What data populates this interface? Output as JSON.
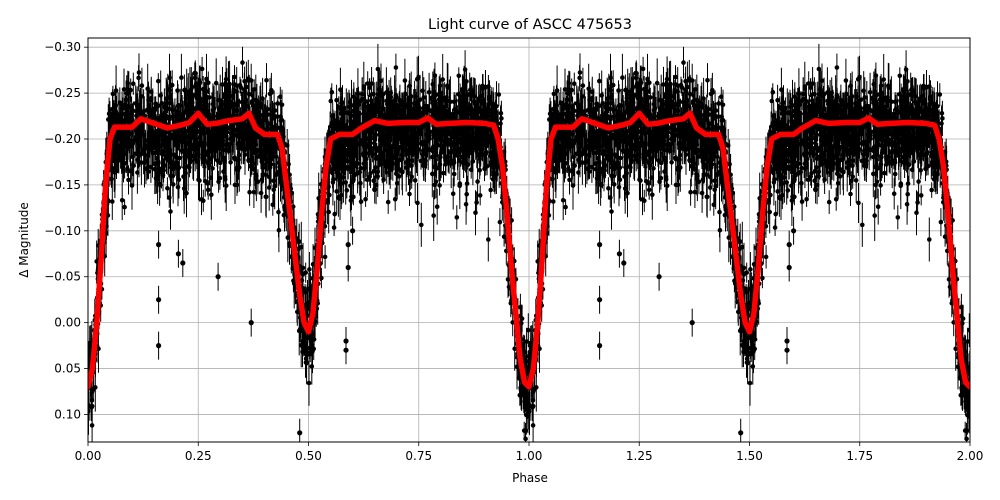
{
  "chart_data": {
    "type": "scatter",
    "title": "Light curve of ASCC 475653",
    "xlabel": "Phase",
    "ylabel": "Δ Magnitude",
    "xlim": [
      0.0,
      2.0
    ],
    "ylim": [
      0.13,
      -0.31
    ],
    "y_inverted": true,
    "grid": true,
    "legend": null,
    "xticks": [
      0.0,
      0.25,
      0.5,
      0.75,
      1.0,
      1.25,
      1.5,
      1.75,
      2.0
    ],
    "xtick_labels": [
      "0.00",
      "0.25",
      "0.50",
      "0.75",
      "1.00",
      "1.25",
      "1.50",
      "1.75",
      "2.00"
    ],
    "yticks": [
      -0.3,
      -0.25,
      -0.2,
      -0.15,
      -0.1,
      -0.05,
      0.0,
      0.05,
      0.1
    ],
    "ytick_labels": [
      "−0.30",
      "−0.25",
      "−0.20",
      "−0.15",
      "−0.10",
      "−0.05",
      "0.00",
      "0.05",
      "0.10"
    ],
    "series": [
      {
        "name": "observations",
        "kind": "errorbar-scatter",
        "color": "#000000",
        "description": "Dense black points with vertical error bars, phase-folded and repeated over two cycles; scatter roughly ±0.05 around the model with outliers down to about -0.02 to 0.05",
        "band_upper": [
          -0.28,
          -0.29,
          -0.29,
          -0.28,
          -0.28,
          -0.25,
          -0.15,
          -0.05,
          -0.05,
          -0.15,
          -0.28,
          -0.3,
          -0.28,
          -0.28,
          -0.28,
          -0.27,
          -0.22,
          -0.05,
          0.13
        ],
        "band_lower": [
          0.13,
          0.05,
          -0.15,
          -0.12,
          -0.12,
          -0.13,
          -0.05,
          0.06,
          0.06,
          -0.08,
          -0.13,
          -0.12,
          -0.13,
          -0.13,
          -0.12,
          -0.12,
          -0.1,
          0.13,
          0.13
        ],
        "band_phase": [
          0.0,
          0.03,
          0.06,
          0.12,
          0.25,
          0.4,
          0.45,
          0.48,
          0.51,
          0.54,
          0.58,
          0.65,
          0.75,
          0.85,
          0.9,
          0.93,
          0.95,
          0.98,
          1.0
        ],
        "outliers": [
          {
            "phase": 0.16,
            "mag": -0.085
          },
          {
            "phase": 0.16,
            "mag": -0.025
          },
          {
            "phase": 0.16,
            "mag": 0.025
          },
          {
            "phase": 0.205,
            "mag": -0.075
          },
          {
            "phase": 0.215,
            "mag": -0.065
          },
          {
            "phase": 0.295,
            "mag": -0.05
          },
          {
            "phase": 0.37,
            "mag": 0.0
          },
          {
            "phase": 0.48,
            "mag": 0.12
          },
          {
            "phase": 0.59,
            "mag": -0.085
          },
          {
            "phase": 0.59,
            "mag": -0.06
          },
          {
            "phase": 0.585,
            "mag": 0.02
          },
          {
            "phase": 0.585,
            "mag": 0.03
          },
          {
            "phase": 0.65,
            "mag": -0.145
          },
          {
            "phase": 0.6,
            "mag": -0.1
          }
        ]
      },
      {
        "name": "model",
        "kind": "line",
        "color": "#ff0000",
        "linewidth": 5,
        "phase": [
          0.0,
          0.01,
          0.02,
          0.03,
          0.04,
          0.05,
          0.06,
          0.08,
          0.1,
          0.12,
          0.15,
          0.18,
          0.21,
          0.23,
          0.25,
          0.27,
          0.29,
          0.32,
          0.35,
          0.365,
          0.38,
          0.4,
          0.43,
          0.44,
          0.45,
          0.46,
          0.47,
          0.48,
          0.49,
          0.5,
          0.51,
          0.52,
          0.53,
          0.54,
          0.55,
          0.57,
          0.6,
          0.62,
          0.65,
          0.68,
          0.72,
          0.75,
          0.77,
          0.79,
          0.82,
          0.86,
          0.9,
          0.92,
          0.93,
          0.94,
          0.95,
          0.96,
          0.97,
          0.98,
          0.99,
          1.0
        ],
        "mag": [
          0.07,
          0.05,
          0.0,
          -0.07,
          -0.15,
          -0.2,
          -0.213,
          -0.213,
          -0.213,
          -0.222,
          -0.217,
          -0.212,
          -0.215,
          -0.218,
          -0.228,
          -0.216,
          -0.217,
          -0.22,
          -0.222,
          -0.228,
          -0.212,
          -0.205,
          -0.205,
          -0.19,
          -0.15,
          -0.11,
          -0.07,
          -0.03,
          0.0,
          0.01,
          -0.01,
          -0.06,
          -0.12,
          -0.17,
          -0.2,
          -0.205,
          -0.205,
          -0.212,
          -0.22,
          -0.217,
          -0.218,
          -0.218,
          -0.223,
          -0.216,
          -0.217,
          -0.218,
          -0.217,
          -0.215,
          -0.2,
          -0.17,
          -0.12,
          -0.06,
          -0.01,
          0.04,
          0.065,
          0.07
        ]
      }
    ]
  }
}
